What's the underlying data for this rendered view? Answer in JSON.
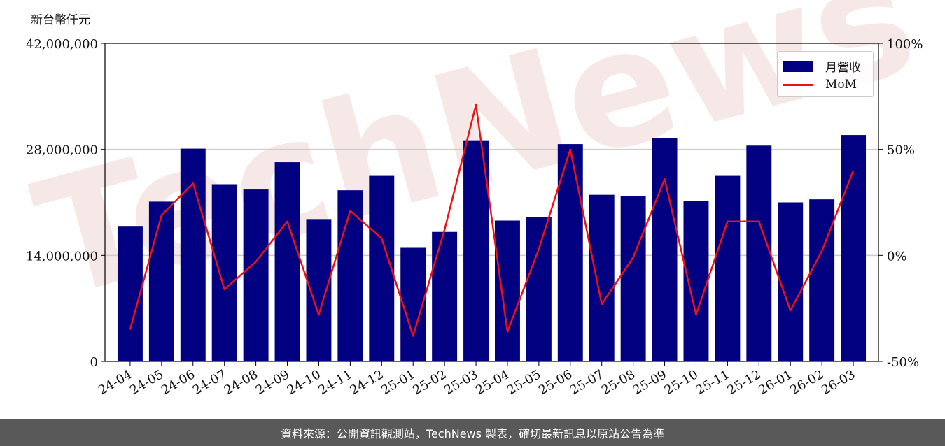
{
  "chart_data": {
    "type": "bar",
    "unit_label": "新台幣仟元",
    "categories": [
      "24-04",
      "24-05",
      "24-06",
      "24-07",
      "24-08",
      "24-09",
      "24-10",
      "24-11",
      "24-12",
      "25-01",
      "25-02",
      "25-03",
      "25-04",
      "25-05",
      "25-06",
      "25-07",
      "25-08",
      "25-09",
      "25-10",
      "25-11",
      "25-12",
      "26-01",
      "26-02",
      "26-03"
    ],
    "series": [
      {
        "name": "月營收",
        "kind": "bar",
        "axis": "left",
        "color": "#000080",
        "values": [
          17800000,
          21100000,
          28100000,
          23400000,
          22700000,
          26300000,
          18800000,
          22600000,
          24500000,
          15000000,
          17100000,
          29200000,
          18600000,
          19100000,
          28700000,
          22000000,
          21800000,
          29500000,
          21200000,
          24500000,
          28500000,
          21000000,
          21400000,
          29900000
        ]
      },
      {
        "name": "MoM",
        "kind": "line",
        "axis": "right",
        "color": "#ee1111",
        "values": [
          -35,
          19,
          34,
          -16,
          -3,
          16,
          -28,
          21,
          8,
          -38,
          12,
          71,
          -36,
          3,
          50,
          -23,
          -1,
          36,
          -28,
          16,
          16,
          -26,
          2,
          40
        ]
      }
    ],
    "ylim_left": [
      0,
      42000000
    ],
    "yticks_left": [
      "0",
      "14,000,000",
      "28,000,000",
      "42,000,000"
    ],
    "ylim_right": [
      -50,
      100
    ],
    "yticks_right": [
      "-50%",
      "0%",
      "50%",
      "100%"
    ],
    "grid": true,
    "legend_position": "top-right"
  },
  "footer": {
    "text": "資料來源：公開資訊觀測站，TechNews 製表，確切最新訊息以原站公告為準"
  },
  "watermark": {
    "text": "TechNews"
  }
}
